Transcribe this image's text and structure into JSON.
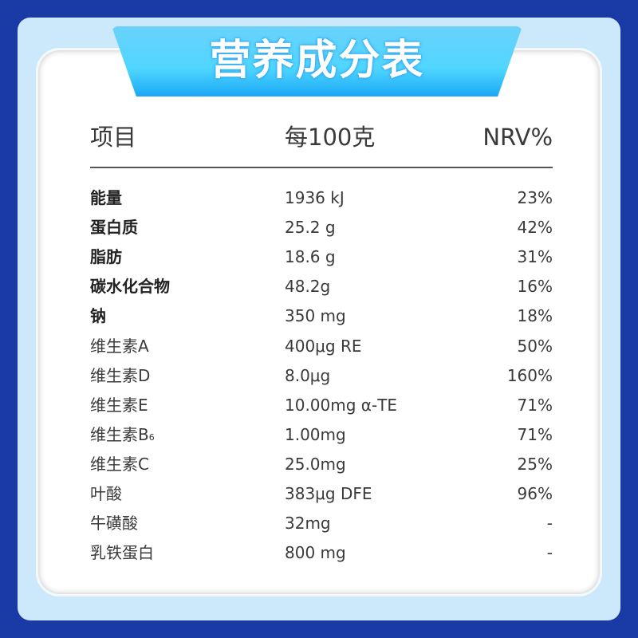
{
  "title": "营养成分表",
  "header": {
    "item": "项目",
    "per100": "每100克",
    "nrv": "NRV%"
  },
  "rows": [
    {
      "name": "能量",
      "bold": true,
      "value": "1936 kJ",
      "nrv": "23%"
    },
    {
      "name": "蛋白质",
      "bold": true,
      "value": "25.2 g",
      "nrv": "42%"
    },
    {
      "name": "脂肪",
      "bold": true,
      "value": "18.6 g",
      "nrv": "31%"
    },
    {
      "name": "碳水化合物",
      "bold": true,
      "value": "48.2g",
      "nrv": "16%"
    },
    {
      "name": "钠",
      "bold": true,
      "value": "350 mg",
      "nrv": "18%"
    },
    {
      "name": "维生素A",
      "value": "400μg RE",
      "nrv": "50%"
    },
    {
      "name": "维生素D",
      "value": "8.0μg",
      "nrv": "160%"
    },
    {
      "name": "维生素E",
      "value": "10.00mg α-TE",
      "nrv": "71%"
    },
    {
      "name": "维生素B",
      "sub": "6",
      "value": "1.00mg",
      "nrv": "71%"
    },
    {
      "name": "维生素C",
      "value": "25.0mg",
      "nrv": "25%"
    },
    {
      "name": "叶酸",
      "value": "383μg DFE",
      "nrv": "96%"
    },
    {
      "name": "牛磺酸",
      "value": "32mg",
      "nrv": "-"
    },
    {
      "name": "乳铁蛋白",
      "value": "800 mg",
      "nrv": "-"
    }
  ]
}
